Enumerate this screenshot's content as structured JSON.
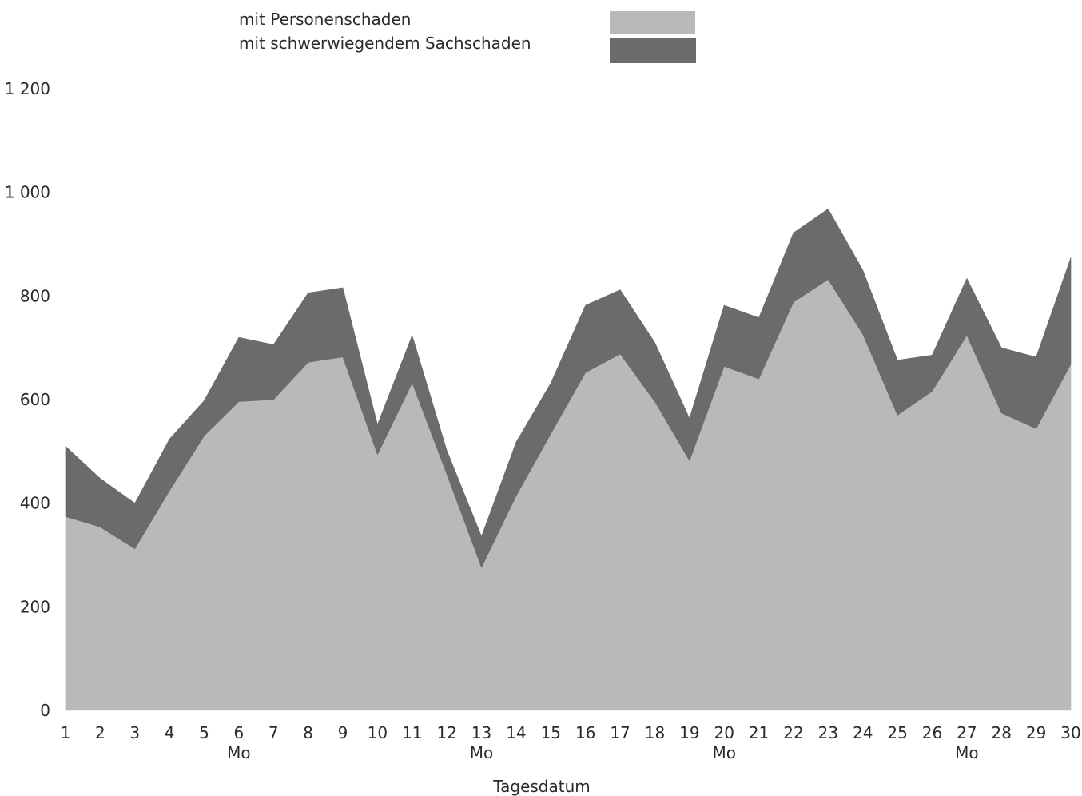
{
  "chart_data": {
    "type": "area",
    "stacked": true,
    "xlabel": "Tagesdatum",
    "ylabel": "",
    "ylim": [
      0,
      1200
    ],
    "yticks": [
      {
        "value": 0,
        "label": "0"
      },
      {
        "value": 200,
        "label": "200"
      },
      {
        "value": 400,
        "label": "400"
      },
      {
        "value": 600,
        "label": "600"
      },
      {
        "value": 800,
        "label": "800"
      },
      {
        "value": 1000,
        "label": "1 000"
      },
      {
        "value": 1200,
        "label": "1 200"
      }
    ],
    "grid": false,
    "legend_position": "top",
    "x": [
      "1",
      "2",
      "3",
      "4",
      "5",
      "6",
      "7",
      "8",
      "9",
      "10",
      "11",
      "12",
      "13",
      "14",
      "15",
      "16",
      "17",
      "18",
      "19",
      "20",
      "21",
      "22",
      "23",
      "24",
      "25",
      "26",
      "27",
      "28",
      "29",
      "30"
    ],
    "weekday_markers": [
      {
        "x": "6",
        "label": "Mo"
      },
      {
        "x": "13",
        "label": "Mo"
      },
      {
        "x": "20",
        "label": "Mo"
      },
      {
        "x": "27",
        "label": "Mo"
      }
    ],
    "series": [
      {
        "name": "mit Personenschaden",
        "color": "#b9b9b9",
        "values": [
          374,
          354,
          312,
          424,
          530,
          596,
          600,
          672,
          682,
          494,
          632,
          456,
          276,
          414,
          534,
          652,
          688,
          596,
          482,
          664,
          640,
          788,
          832,
          726,
          570,
          616,
          724,
          574,
          544,
          668
        ]
      },
      {
        "name": "mit schwerwiegendem Sachschaden",
        "color": "#6b6b6b",
        "values": [
          136,
          94,
          88,
          100,
          68,
          124,
          106,
          134,
          134,
          58,
          92,
          46,
          60,
          104,
          98,
          130,
          124,
          114,
          82,
          118,
          118,
          134,
          136,
          124,
          106,
          70,
          110,
          126,
          138,
          206
        ]
      }
    ]
  }
}
